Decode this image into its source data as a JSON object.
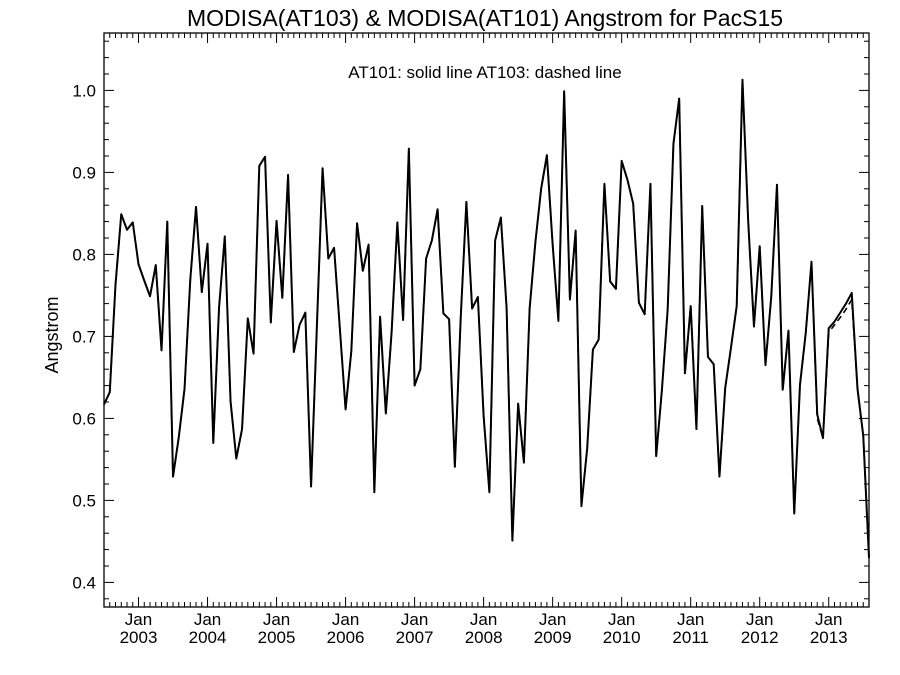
{
  "chart_data": {
    "type": "line",
    "title": "MODISA(AT103) & MODISA(AT101)  Angstrom for PacS15",
    "annotation": "AT101: solid line   AT103: dashed line",
    "xlabel": "",
    "ylabel": "Angstrom",
    "xlim": [
      "2002-07",
      "2013-08"
    ],
    "ylim": [
      0.37,
      1.07
    ],
    "grid": false,
    "legend": "none",
    "y_ticks": [
      0.4,
      0.5,
      0.6,
      0.7,
      0.8,
      0.9,
      1.0
    ],
    "y_tick_labels": [
      "0.4",
      "0.5",
      "0.6",
      "0.7",
      "0.8",
      "0.9",
      "1.0"
    ],
    "x_ticks": [
      {
        "month": "Jan",
        "year": "2003",
        "date": "2003-01"
      },
      {
        "month": "Jan",
        "year": "2004",
        "date": "2004-01"
      },
      {
        "month": "Jan",
        "year": "2005",
        "date": "2005-01"
      },
      {
        "month": "Jan",
        "year": "2006",
        "date": "2006-01"
      },
      {
        "month": "Jan",
        "year": "2007",
        "date": "2007-01"
      },
      {
        "month": "Jan",
        "year": "2008",
        "date": "2008-01"
      },
      {
        "month": "Jan",
        "year": "2009",
        "date": "2009-01"
      },
      {
        "month": "Jan",
        "year": "2010",
        "date": "2010-01"
      },
      {
        "month": "Jan",
        "year": "2011",
        "date": "2011-01"
      },
      {
        "month": "Jan",
        "year": "2012",
        "date": "2012-01"
      },
      {
        "month": "Jan",
        "year": "2013",
        "date": "2013-01"
      }
    ],
    "x": [
      "2002-07",
      "2002-08",
      "2002-09",
      "2002-10",
      "2002-11",
      "2002-12",
      "2003-01",
      "2003-02",
      "2003-03",
      "2003-04",
      "2003-05",
      "2003-06",
      "2003-07",
      "2003-08",
      "2003-09",
      "2003-10",
      "2003-11",
      "2003-12",
      "2004-01",
      "2004-02",
      "2004-03",
      "2004-04",
      "2004-05",
      "2004-06",
      "2004-07",
      "2004-08",
      "2004-09",
      "2004-10",
      "2004-11",
      "2004-12",
      "2005-01",
      "2005-02",
      "2005-03",
      "2005-04",
      "2005-05",
      "2005-06",
      "2005-07",
      "2005-08",
      "2005-09",
      "2005-10",
      "2005-11",
      "2005-12",
      "2006-01",
      "2006-02",
      "2006-03",
      "2006-04",
      "2006-05",
      "2006-06",
      "2006-07",
      "2006-08",
      "2006-09",
      "2006-10",
      "2006-11",
      "2006-12",
      "2007-01",
      "2007-02",
      "2007-03",
      "2007-04",
      "2007-05",
      "2007-06",
      "2007-07",
      "2007-08",
      "2007-09",
      "2007-10",
      "2007-11",
      "2007-12",
      "2008-01",
      "2008-02",
      "2008-03",
      "2008-04",
      "2008-05",
      "2008-06",
      "2008-07",
      "2008-08",
      "2008-09",
      "2008-10",
      "2008-11",
      "2008-12",
      "2009-01",
      "2009-02",
      "2009-03",
      "2009-04",
      "2009-05",
      "2009-06",
      "2009-07",
      "2009-08",
      "2009-09",
      "2009-10",
      "2009-11",
      "2009-12",
      "2010-01",
      "2010-02",
      "2010-03",
      "2010-04",
      "2010-05",
      "2010-06",
      "2010-07",
      "2010-08",
      "2010-09",
      "2010-10",
      "2010-11",
      "2010-12",
      "2011-01",
      "2011-02",
      "2011-03",
      "2011-04",
      "2011-05",
      "2011-06",
      "2011-07",
      "2011-08",
      "2011-09",
      "2011-10",
      "2011-11",
      "2011-12",
      "2012-01",
      "2012-02",
      "2012-03",
      "2012-04",
      "2012-05",
      "2012-06",
      "2012-07",
      "2012-08",
      "2012-09",
      "2012-10",
      "2012-11",
      "2012-12",
      "2013-01",
      "2013-02",
      "2013-03",
      "2013-04",
      "2013-05",
      "2013-06",
      "2013-07",
      "2013-08"
    ],
    "series": [
      {
        "style": "solid",
        "values": [
          0.617,
          0.632,
          0.763,
          0.849,
          0.83,
          0.839,
          0.788,
          0.768,
          0.749,
          0.787,
          0.683,
          0.84,
          0.529,
          0.577,
          0.636,
          0.769,
          0.858,
          0.754,
          0.813,
          0.57,
          0.735,
          0.822,
          0.621,
          0.551,
          0.587,
          0.722,
          0.679,
          0.908,
          0.919,
          0.717,
          0.841,
          0.747,
          0.897,
          0.681,
          0.714,
          0.729,
          0.517,
          0.71,
          0.905,
          0.795,
          0.808,
          0.71,
          0.611,
          0.682,
          0.838,
          0.78,
          0.812,
          0.51,
          0.724,
          0.606,
          0.705,
          0.839,
          0.72,
          0.929,
          0.64,
          0.66,
          0.795,
          0.817,
          0.855,
          0.728,
          0.721,
          0.541,
          0.72,
          0.864,
          0.734,
          0.748,
          0.603,
          0.51,
          0.817,
          0.845,
          0.734,
          0.451,
          0.618,
          0.546,
          0.734,
          0.815,
          0.88,
          0.921,
          0.812,
          0.719,
          0.999,
          0.745,
          0.829,
          0.493,
          0.563,
          0.684,
          0.696,
          0.886,
          0.767,
          0.758,
          0.914,
          0.891,
          0.862,
          0.741,
          0.727,
          0.886,
          0.554,
          0.635,
          0.733,
          0.935,
          0.99,
          0.655,
          0.737,
          0.587,
          0.859,
          0.675,
          0.666,
          0.529,
          0.637,
          0.686,
          0.737,
          1.013,
          0.84,
          0.712,
          0.81,
          0.665,
          0.748,
          0.885,
          0.635,
          0.707,
          0.484,
          0.641,
          0.704,
          0.791,
          0.605,
          0.576,
          0.71,
          0.718,
          0.729,
          0.74,
          0.753,
          0.636,
          0.579,
          0.43
        ]
      },
      {
        "style": "dashed",
        "values": [
          0.617,
          0.632,
          0.763,
          0.849,
          0.83,
          0.839,
          0.788,
          0.768,
          0.749,
          0.787,
          0.683,
          0.84,
          0.529,
          0.577,
          0.636,
          0.769,
          0.858,
          0.754,
          0.813,
          0.57,
          0.735,
          0.822,
          0.621,
          0.551,
          0.587,
          0.722,
          0.679,
          0.908,
          0.919,
          0.717,
          0.841,
          0.747,
          0.897,
          0.681,
          0.714,
          0.729,
          0.517,
          0.71,
          0.905,
          0.795,
          0.808,
          0.71,
          0.611,
          0.682,
          0.838,
          0.78,
          0.812,
          0.51,
          0.724,
          0.606,
          0.705,
          0.839,
          0.72,
          0.929,
          0.64,
          0.66,
          0.795,
          0.817,
          0.855,
          0.728,
          0.721,
          0.541,
          0.72,
          0.864,
          0.734,
          0.748,
          0.603,
          0.51,
          0.817,
          0.845,
          0.734,
          0.451,
          0.618,
          0.546,
          0.734,
          0.815,
          0.88,
          0.921,
          0.812,
          0.719,
          0.999,
          0.745,
          0.829,
          0.493,
          0.563,
          0.684,
          0.696,
          0.886,
          0.767,
          0.758,
          0.914,
          0.891,
          0.862,
          0.741,
          0.727,
          0.886,
          0.554,
          0.635,
          0.733,
          0.935,
          0.99,
          0.655,
          0.737,
          0.587,
          0.859,
          0.675,
          0.666,
          0.529,
          0.637,
          0.686,
          0.737,
          1.013,
          0.84,
          0.712,
          0.81,
          0.665,
          0.748,
          0.885,
          0.635,
          0.707,
          0.484,
          0.641,
          0.704,
          0.791,
          0.6,
          0.576,
          0.705,
          0.714,
          0.723,
          0.733,
          0.745,
          0.636,
          0.579,
          0.43
        ]
      }
    ]
  }
}
